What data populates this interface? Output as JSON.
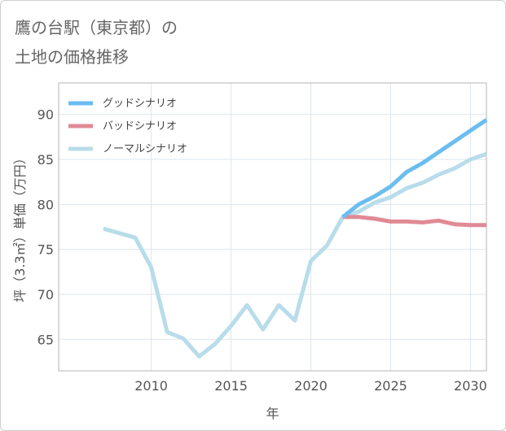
{
  "title_lines": [
    "鷹の台駅（東京都）の",
    "土地の価格推移"
  ],
  "chart_data": {
    "type": "line",
    "title": "鷹の台駅（東京都）の土地の価格推移",
    "xlabel": "年",
    "ylabel": "坪（3.3㎡）単価（万円）",
    "xlim": [
      2004.2,
      2031
    ],
    "ylim": [
      61.5,
      93.5
    ],
    "xticks": [
      2010,
      2015,
      2020,
      2025,
      2030
    ],
    "yticks": [
      65,
      70,
      75,
      80,
      85,
      90
    ],
    "grid": true,
    "legend_position": "top-left",
    "series": [
      {
        "name": "グッドシナリオ",
        "color": "#6bbdf0",
        "x": [
          2022,
          2023,
          2024,
          2025,
          2026,
          2027,
          2028,
          2029,
          2030,
          2031
        ],
        "y": [
          78.6,
          80.0,
          80.9,
          82.0,
          83.6,
          84.6,
          85.8,
          87.0,
          88.2,
          89.4
        ]
      },
      {
        "name": "バッドシナリオ",
        "color": "#e08a95",
        "x": [
          2022,
          2023,
          2024,
          2025,
          2026,
          2027,
          2028,
          2029,
          2030,
          2031
        ],
        "y": [
          78.6,
          78.6,
          78.4,
          78.1,
          78.1,
          78.0,
          78.2,
          77.8,
          77.7,
          77.7
        ]
      },
      {
        "name": "ノーマルシナリオ",
        "color": "#b8dcea",
        "x": [
          2007,
          2008,
          2009,
          2010,
          2011,
          2012,
          2013,
          2014,
          2015,
          2016,
          2017,
          2018,
          2019,
          2020,
          2021,
          2022,
          2023,
          2024,
          2025,
          2026,
          2027,
          2028,
          2029,
          2030,
          2031
        ],
        "y": [
          77.3,
          76.8,
          76.3,
          73.0,
          65.8,
          65.1,
          63.1,
          64.5,
          66.5,
          68.8,
          66.1,
          68.8,
          67.1,
          73.7,
          75.4,
          78.6,
          79.2,
          80.2,
          80.8,
          81.8,
          82.4,
          83.3,
          84.0,
          85.0,
          85.6
        ]
      }
    ]
  }
}
